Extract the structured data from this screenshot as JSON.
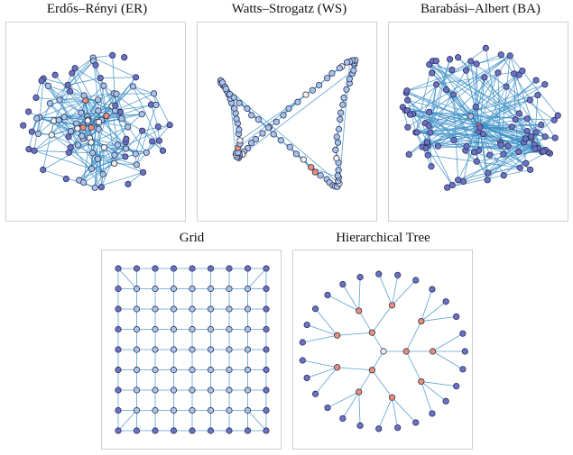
{
  "figure": {
    "panels": [
      {
        "id": "er",
        "title": "Erdős–Rényi (ER)",
        "graph_type": "random"
      },
      {
        "id": "ws",
        "title": "Watts–Strogatz (WS)",
        "graph_type": "small-world"
      },
      {
        "id": "ba",
        "title": "Barabási–Albert (BA)",
        "graph_type": "scale-free"
      },
      {
        "id": "grid",
        "title": "Grid",
        "graph_type": "lattice",
        "rows": 9,
        "cols": 9
      },
      {
        "id": "tree",
        "title": "Hierarchical Tree",
        "graph_type": "tree",
        "branching": [
          3,
          3,
          3
        ]
      }
    ],
    "colors": {
      "edge": "#3d8fc7",
      "node_outline": "#2a2f55",
      "node_low": "#6b72c6",
      "node_mid": "#a9c4ea",
      "node_high": "#ee8e74",
      "node_white": "#f4f1ea",
      "panel_border": "#cfcfcf"
    }
  }
}
